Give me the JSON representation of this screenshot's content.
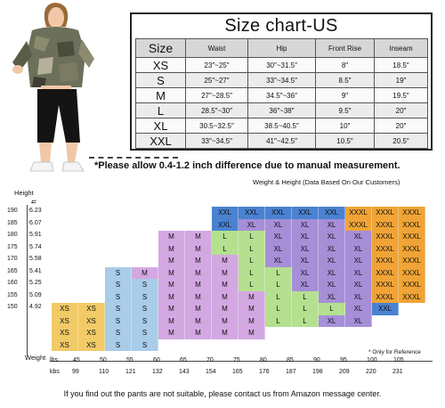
{
  "size_chart": {
    "title": "Size chart-US",
    "columns": [
      "Size",
      "Waist",
      "Hip",
      "Front Rise",
      "Inseam"
    ],
    "rows": [
      [
        "XS",
        "23″~25″",
        "30″~31.5″",
        "8″",
        "18.5″"
      ],
      [
        "S",
        "25″~27″",
        "33″~34.5″",
        "8.5″",
        "19″"
      ],
      [
        "M",
        "27″~28.5″",
        "34.5″~36″",
        "9″",
        "19.5″"
      ],
      [
        "L",
        "28.5″~30″",
        "36″~38″",
        "9.5″",
        "20″"
      ],
      [
        "XL",
        "30.5~32.5″",
        "38.5~40.5″",
        "10″",
        "20″"
      ],
      [
        "XXL",
        "33″~34.5″",
        "41″~42.5″",
        "10.5″",
        "20.5″"
      ]
    ]
  },
  "note": "*Please allow 0.4-1.2 inch difference due to manual measurement.",
  "weight_height_caption": "Weight & Height  (Data Based On Our Customers)",
  "height_axis": {
    "cm_label": "Height",
    "ft_label": "ft",
    "cm_ticks": [
      "190",
      "185",
      "180",
      "175",
      "170",
      "165",
      "160",
      "155",
      "150"
    ],
    "ft_ticks": [
      "6.23",
      "6.07",
      "5.91",
      "5.74",
      "5.58",
      "5.41",
      "5.25",
      "5.09",
      "4.92"
    ]
  },
  "weight_axis": {
    "label": "Weight",
    "lbs_unit": "lbs",
    "kbs_unit": "kbs",
    "lbs_ticks": [
      "45",
      "50",
      "55",
      "60",
      "65",
      "70",
      "75",
      "80",
      "85",
      "90",
      "95",
      "100",
      "105"
    ],
    "kbs_ticks": [
      "99",
      "110",
      "121",
      "132",
      "143",
      "154",
      "165",
      "176",
      "187",
      "198",
      "209",
      "220",
      "231"
    ],
    "reference_note": "* Only for Reference"
  },
  "grid": {
    "colors": {
      "XS": "#f2cb68",
      "S": "#a9cce9",
      "M": "#d3a8e2",
      "L": "#b4e08f",
      "XL": "#a78fd8",
      "XXL": "#4a82d1",
      "XXXL": "#f0a436"
    },
    "rows": [
      [
        "",
        "",
        "",
        "",
        "",
        "",
        "XXL",
        "XXL",
        "XXL",
        "XXL",
        "XXL",
        "XXXL",
        "XXXL",
        "XXXL"
      ],
      [
        "",
        "",
        "",
        "",
        "",
        "",
        "XXL",
        "XL",
        "XL",
        "XL",
        "XL",
        "XXXL",
        "XXXL",
        "XXXL"
      ],
      [
        "",
        "",
        "",
        "",
        "M",
        "M",
        "L",
        "L",
        "XL",
        "XL",
        "XL",
        "XL",
        "XXXL",
        "XXXL"
      ],
      [
        "",
        "",
        "",
        "",
        "M",
        "M",
        "L",
        "L",
        "XL",
        "XL",
        "XL",
        "XL",
        "XXXL",
        "XXXL"
      ],
      [
        "",
        "",
        "",
        "",
        "M",
        "M",
        "M",
        "L",
        "XL",
        "XL",
        "XL",
        "XL",
        "XXXL",
        "XXXL"
      ],
      [
        "",
        "",
        "S",
        "M",
        "M",
        "M",
        "M",
        "L",
        "L",
        "XL",
        "XL",
        "XL",
        "XXXL",
        "XXXL"
      ],
      [
        "",
        "",
        "S",
        "S",
        "M",
        "M",
        "M",
        "L",
        "L",
        "XL",
        "XL",
        "XL",
        "XXXL",
        "XXXL"
      ],
      [
        "",
        "",
        "S",
        "S",
        "M",
        "M",
        "M",
        "M",
        "L",
        "L",
        "XL",
        "XL",
        "XXXL",
        "XXXL"
      ],
      [
        "XS",
        "XS",
        "S",
        "S",
        "M",
        "M",
        "M",
        "M",
        "L",
        "L",
        "L",
        "XL",
        "XXL",
        ""
      ],
      [
        "XS",
        "XS",
        "S",
        "S",
        "M",
        "M",
        "M",
        "M",
        "L",
        "L",
        "XL",
        "XL",
        "",
        ""
      ],
      [
        "XS",
        "XS",
        "S",
        "S",
        "M",
        "M",
        "M",
        "M",
        "",
        "",
        "",
        "",
        "",
        ""
      ],
      [
        "XS",
        "XS",
        "S",
        "S",
        "",
        "",
        "",
        "",
        "",
        "",
        "",
        "",
        "",
        ""
      ]
    ]
  },
  "footer": "If you find out the pants are not suitable, please contact us from Amazon message center."
}
